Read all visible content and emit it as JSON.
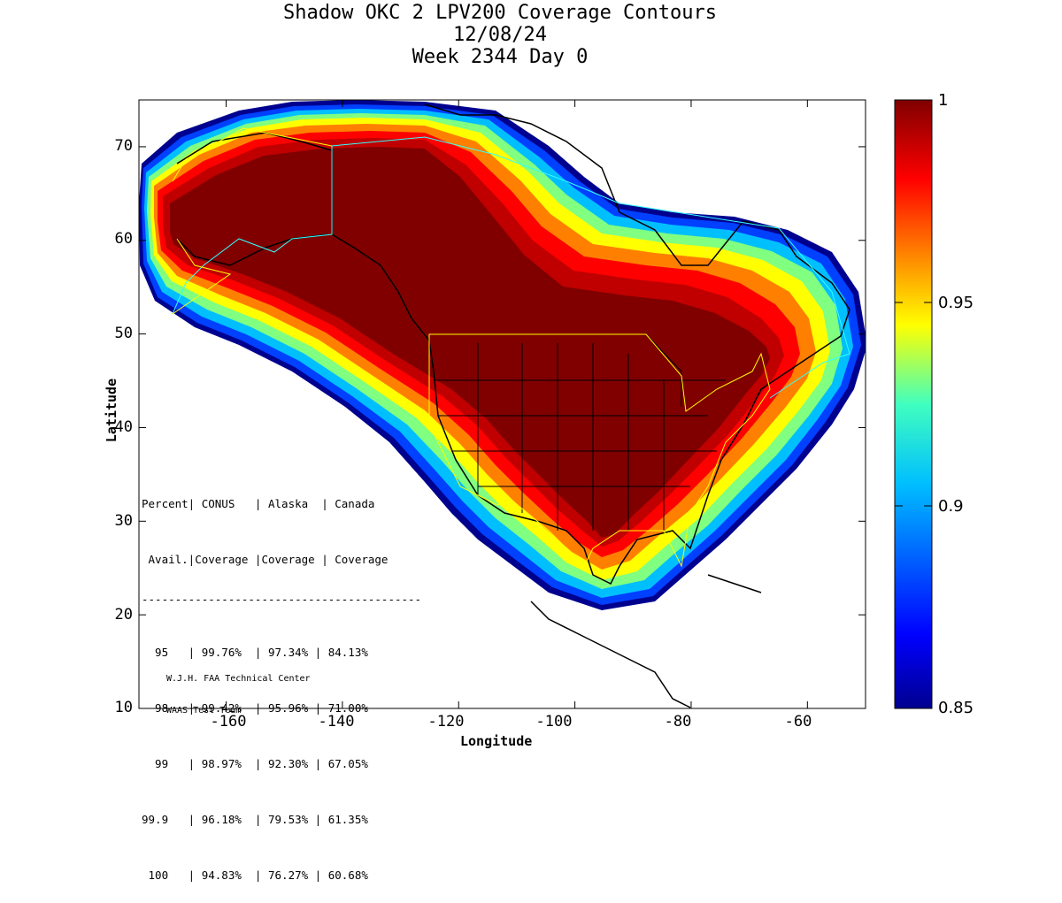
{
  "title": {
    "line1": "Shadow OKC 2 LPV200 Coverage Contours",
    "line2": "12/08/24",
    "line3": "Week 2344 Day 0"
  },
  "axes": {
    "xlabel": "Longitude",
    "ylabel": "Latitude",
    "xticks": [
      "-160",
      "-140",
      "-120",
      "-100",
      "-80",
      "-60"
    ],
    "yticks": [
      "70",
      "60",
      "50",
      "40",
      "30",
      "20",
      "10"
    ],
    "xlim": [
      -175,
      -50
    ],
    "ylim": [
      10,
      75
    ]
  },
  "colorbar": {
    "ticks": [
      "1",
      "0.95",
      "0.9",
      "0.85"
    ],
    "range": [
      0.85,
      1
    ]
  },
  "table": {
    "header1": "Percent| CONUS   | Alaska  | Canada",
    "header2": " Avail.|Coverage |Coverage | Coverage",
    "rule": "------------------------------------------",
    "rows": [
      "  95   | 99.76%  | 97.34% | 84.13%",
      "  98   | 99.42%  | 95.96% | 71.00%",
      "  99   | 98.97%  | 92.30% | 67.05%",
      "99.9   | 96.18%  | 79.53% | 61.35%",
      " 100   | 94.83%  | 76.27% | 60.68%"
    ]
  },
  "credit": {
    "line1": "W.J.H. FAA Technical Center",
    "line2": "WAAS Test Team"
  }
}
